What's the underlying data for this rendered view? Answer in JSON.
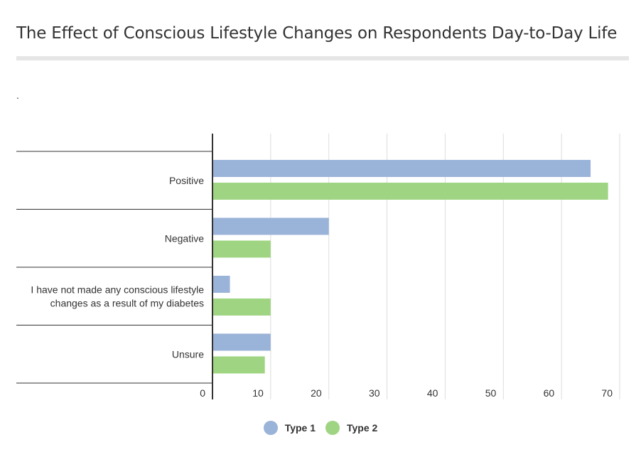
{
  "title": "The Effect of Conscious Lifestyle Changes on Respondents Day-to-Day Life",
  "subtitle": ".",
  "colors": {
    "type1": "#9ab3d8",
    "type2": "#9fd582",
    "grid": "#dddddd",
    "axis": "#333333"
  },
  "legend": [
    {
      "label": "Type 1",
      "color": "#9ab3d8"
    },
    {
      "label": "Type 2",
      "color": "#9fd582"
    }
  ],
  "chart_data": {
    "type": "bar",
    "orientation": "horizontal",
    "title": "The Effect of Conscious Lifestyle Changes on Respondents Day-to-Day Life",
    "categories": [
      [
        "Positive"
      ],
      [
        "Negative"
      ],
      [
        "I have not made any conscious lifestyle",
        "changes as a result of my diabetes"
      ],
      [
        "Unsure"
      ]
    ],
    "series": [
      {
        "name": "Type 1",
        "values": [
          65,
          20,
          3,
          10
        ]
      },
      {
        "name": "Type 2",
        "values": [
          68,
          10,
          10,
          9
        ]
      }
    ],
    "xlim": [
      0,
      70
    ],
    "xticks": [
      0,
      10,
      20,
      30,
      40,
      50,
      60,
      70
    ],
    "grid": true,
    "legend_position": "bottom"
  }
}
